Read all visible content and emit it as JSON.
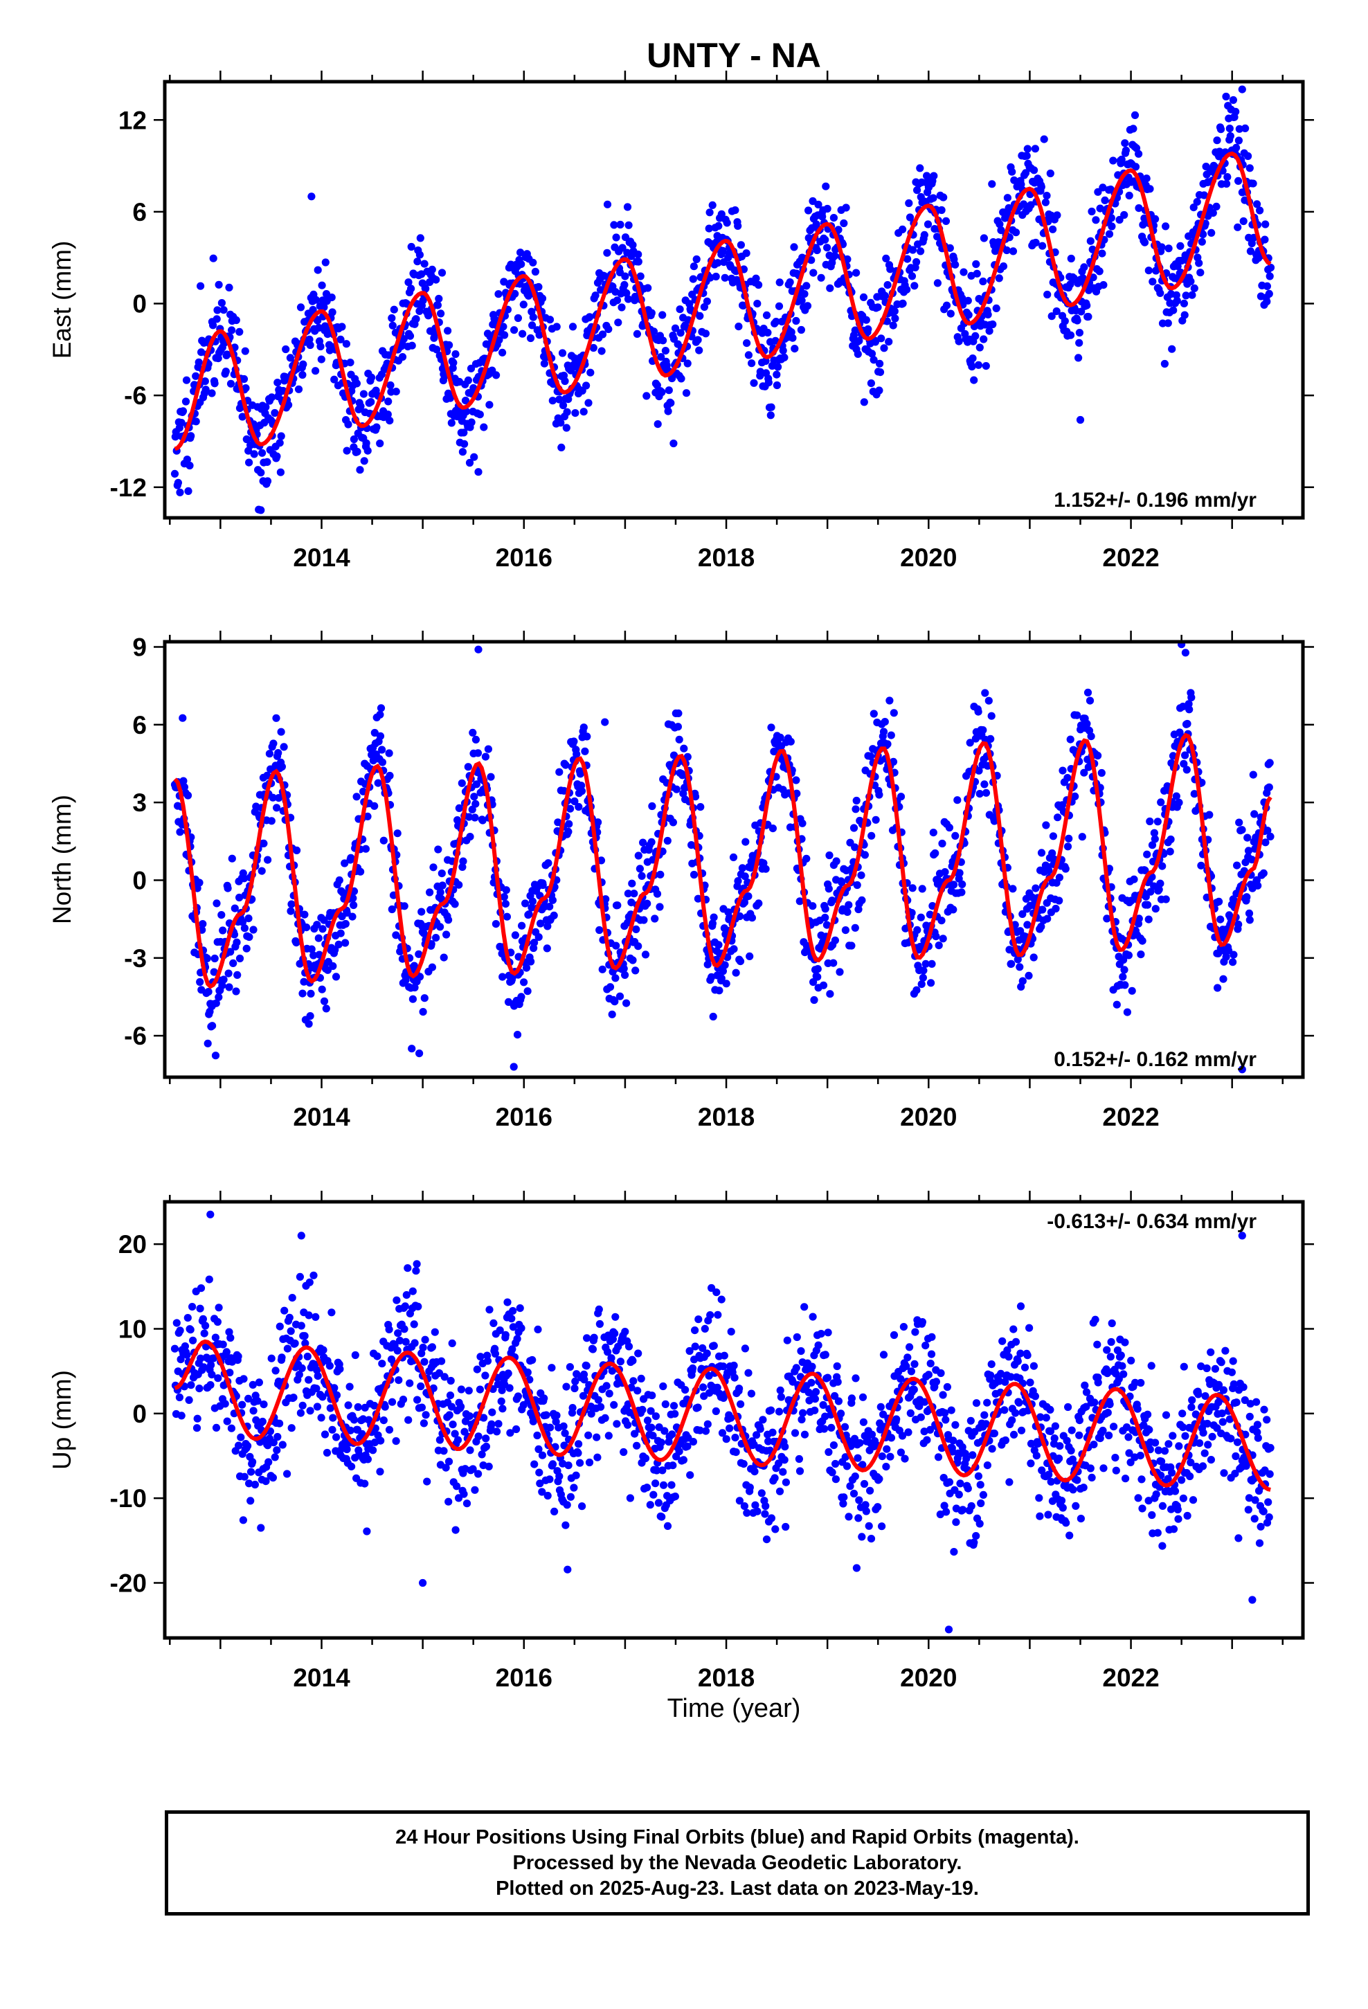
{
  "title": "UNTY - NA",
  "xlabel": "Time (year)",
  "footer": {
    "line1": "24 Hour Positions Using Final Orbits (blue) and Rapid Orbits (magenta).",
    "line2": "Processed by the Nevada Geodetic Laboratory.",
    "line3": "Plotted on 2025-Aug-23. Last data on 2023-May-19."
  },
  "colors": {
    "data": "#0000ff",
    "model": "#ff0000",
    "axes": "#000000"
  },
  "chart_data": [
    {
      "type": "scatter",
      "component": "East",
      "ylabel": "East (mm)",
      "rate_label": "1.152+/- 0.196 mm/yr",
      "xlim": [
        2012.45,
        2023.7
      ],
      "ylim": [
        -14,
        14.5
      ],
      "x_ticks": [
        2014,
        2016,
        2018,
        2020,
        2022
      ],
      "y_ticks": [
        -12,
        -6,
        0,
        6,
        12
      ],
      "x_tick_labels": [
        "2014",
        "2016",
        "2018",
        "2020",
        "2022"
      ],
      "y_tick_labels": [
        "-12",
        "-6",
        "0",
        "6",
        "12"
      ],
      "data_range": [
        2012.55,
        2023.38
      ],
      "model_x": [
        2012.55,
        2013.0,
        2013.4,
        2014.0,
        2014.4,
        2015.0,
        2015.4,
        2016.0,
        2016.4,
        2017.0,
        2017.4,
        2018.0,
        2018.4,
        2019.0,
        2019.4,
        2020.0,
        2020.4,
        2021.0,
        2021.4,
        2022.0,
        2022.4,
        2023.0,
        2023.38
      ],
      "model_y": [
        -9.5,
        -1.8,
        -9.2,
        -0.5,
        -8.0,
        0.7,
        -6.8,
        1.8,
        -5.8,
        2.9,
        -4.7,
        4.1,
        -3.5,
        5.2,
        -2.3,
        6.4,
        -1.3,
        7.5,
        -0.1,
        8.7,
        1.0,
        9.8,
        2.6
      ],
      "scatter_noise": 1.7,
      "scatter_seed": 11,
      "outliers": [
        [
          2013.9,
          7.0
        ],
        [
          2021.5,
          -7.6
        ],
        [
          2023.1,
          14.0
        ],
        [
          2015.55,
          -11.0
        ],
        [
          2013.4,
          -13.5
        ]
      ]
    },
    {
      "type": "scatter",
      "component": "North",
      "ylabel": "North (mm)",
      "rate_label": "0.152+/- 0.162 mm/yr",
      "xlim": [
        2012.45,
        2023.7
      ],
      "ylim": [
        -7.6,
        9.2
      ],
      "x_ticks": [
        2014,
        2016,
        2018,
        2020,
        2022
      ],
      "y_ticks": [
        -6,
        -3,
        0,
        3,
        6,
        9
      ],
      "x_tick_labels": [
        "2014",
        "2016",
        "2018",
        "2020",
        "2022"
      ],
      "y_tick_labels": [
        "-6",
        "-3",
        "0",
        "3",
        "6",
        "9"
      ],
      "data_range": [
        2012.55,
        2023.38
      ],
      "model_x": [
        2012.55,
        2012.9,
        2013.2,
        2013.55,
        2013.9,
        2014.2,
        2014.55,
        2014.9,
        2015.2,
        2015.55,
        2015.9,
        2016.2,
        2016.55,
        2016.9,
        2017.2,
        2017.55,
        2017.9,
        2018.2,
        2018.55,
        2018.9,
        2019.2,
        2019.55,
        2019.9,
        2020.2,
        2020.55,
        2020.9,
        2021.2,
        2021.55,
        2021.9,
        2022.2,
        2022.55,
        2022.9,
        2023.2,
        2023.38
      ],
      "model_y": [
        3.9,
        -4.1,
        -1.3,
        4.2,
        -3.9,
        -1.1,
        4.4,
        -3.7,
        -0.9,
        4.5,
        -3.6,
        -0.7,
        4.7,
        -3.4,
        -0.5,
        4.8,
        -3.3,
        -0.4,
        5.0,
        -3.1,
        -0.2,
        5.1,
        -3.0,
        0.0,
        5.3,
        -2.9,
        0.1,
        5.4,
        -2.7,
        0.3,
        5.6,
        -2.5,
        0.4,
        3.2
      ],
      "scatter_noise": 1.1,
      "scatter_seed": 29,
      "outliers": [
        [
          2015.55,
          8.9
        ],
        [
          2022.5,
          9.1
        ],
        [
          2016.8,
          6.1
        ],
        [
          2023.1,
          -7.3
        ],
        [
          2015.9,
          -7.2
        ]
      ]
    },
    {
      "type": "scatter",
      "component": "Up",
      "ylabel": "Up (mm)",
      "rate_label": "-0.613+/- 0.634 mm/yr",
      "xlim": [
        2012.45,
        2023.7
      ],
      "ylim": [
        -26.5,
        25
      ],
      "x_ticks": [
        2014,
        2016,
        2018,
        2020,
        2022
      ],
      "y_ticks": [
        -20,
        -10,
        0,
        10,
        20
      ],
      "x_tick_labels": [
        "2014",
        "2016",
        "2018",
        "2020",
        "2022"
      ],
      "y_tick_labels": [
        "-20",
        "-10",
        "0",
        "10",
        "20"
      ],
      "data_range": [
        2012.55,
        2023.38
      ],
      "model_x": [
        2012.55,
        2012.85,
        2013.35,
        2013.85,
        2014.35,
        2014.85,
        2015.35,
        2015.85,
        2016.35,
        2016.85,
        2017.35,
        2017.85,
        2018.35,
        2018.85,
        2019.35,
        2019.85,
        2020.35,
        2020.85,
        2021.35,
        2021.85,
        2022.35,
        2022.85,
        2023.38
      ],
      "model_y": [
        3.0,
        8.5,
        -3.0,
        7.8,
        -3.6,
        7.2,
        -4.2,
        6.6,
        -4.9,
        5.9,
        -5.5,
        5.3,
        -6.1,
        4.7,
        -6.7,
        4.1,
        -7.3,
        3.5,
        -7.9,
        2.9,
        -8.5,
        2.2,
        -9.0
      ],
      "scatter_noise": 4.2,
      "scatter_seed": 47,
      "outliers": [
        [
          2012.9,
          23.5
        ],
        [
          2013.8,
          21.0
        ],
        [
          2015.0,
          -20.0
        ],
        [
          2020.2,
          -25.5
        ],
        [
          2023.1,
          21.0
        ],
        [
          2023.2,
          -22.0
        ],
        [
          2013.4,
          -13.5
        ]
      ]
    }
  ]
}
